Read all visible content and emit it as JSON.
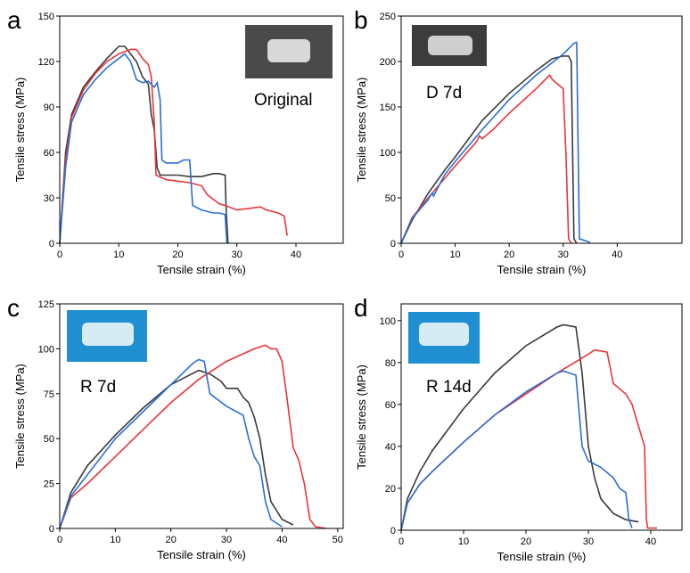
{
  "chart_data": [
    {
      "type": "line",
      "label": "a",
      "annotation": "Original",
      "xlabel": "Tensile strain (%)",
      "ylabel": "Tensile stress (MPa)",
      "xlim": [
        0,
        48
      ],
      "ylim": [
        0,
        150
      ],
      "xticks": [
        0,
        10,
        20,
        30,
        40
      ],
      "yticks": [
        0,
        30,
        60,
        90,
        120,
        150
      ],
      "grid": false,
      "series": [
        {
          "color": "#3a3a3a",
          "x": [
            0,
            1,
            2,
            4,
            6,
            8,
            10,
            11,
            12,
            13,
            14,
            15,
            15.5,
            16,
            16.5,
            17,
            20,
            22,
            24,
            26,
            27,
            28,
            28.2,
            28.5
          ],
          "values": [
            0,
            60,
            85,
            103,
            113,
            122,
            130,
            130,
            125,
            120,
            110,
            105,
            85,
            75,
            50,
            45,
            45,
            44,
            44,
            46,
            46,
            45,
            20,
            0
          ]
        },
        {
          "color": "#e8363a",
          "x": [
            0,
            1,
            2,
            4,
            6,
            8,
            10,
            12,
            13,
            14,
            15,
            15.5,
            16,
            16.3,
            18,
            20,
            22,
            24,
            25,
            27,
            28,
            30,
            32,
            34,
            35,
            37,
            38,
            38.5
          ],
          "values": [
            0,
            55,
            83,
            101,
            112,
            120,
            125,
            128,
            128,
            122,
            118,
            110,
            80,
            45,
            42,
            41,
            40,
            38,
            32,
            26,
            25,
            22,
            23,
            24,
            22,
            20,
            18,
            5
          ]
        },
        {
          "color": "#2a6fd6",
          "x": [
            0,
            1,
            2,
            4,
            6,
            8,
            10,
            11,
            12,
            13,
            14,
            15,
            16,
            16.5,
            17,
            17.3,
            18,
            20,
            21,
            22,
            22.5,
            24,
            26,
            27,
            28,
            28.3
          ],
          "values": [
            0,
            50,
            80,
            98,
            108,
            116,
            122,
            125,
            120,
            108,
            106,
            107,
            103,
            106,
            95,
            55,
            53,
            53,
            55,
            55,
            25,
            22,
            20,
            20,
            19,
            0
          ]
        }
      ]
    },
    {
      "type": "line",
      "label": "b",
      "annotation": "D 7d",
      "xlabel": "Tensile strain (%)",
      "ylabel": "Tensile stress (MPa)",
      "xlim": [
        0,
        52
      ],
      "ylim": [
        0,
        250
      ],
      "xticks": [
        0,
        10,
        20,
        30,
        40
      ],
      "yticks": [
        0,
        50,
        100,
        150,
        200,
        250
      ],
      "grid": false,
      "series": [
        {
          "color": "#3a3a3a",
          "x": [
            0,
            2,
            5,
            8,
            10,
            15,
            20,
            25,
            28,
            30,
            31,
            31.5,
            32,
            32.5
          ],
          "values": [
            0,
            25,
            55,
            80,
            95,
            135,
            165,
            190,
            203,
            206,
            206,
            200,
            5,
            0
          ]
        },
        {
          "color": "#e8363a",
          "x": [
            0,
            2,
            5,
            10,
            14,
            14.5,
            15,
            17,
            20,
            25,
            27.5,
            28,
            29,
            30,
            30.5,
            31,
            31.5
          ],
          "values": [
            0,
            28,
            50,
            85,
            112,
            118,
            115,
            125,
            143,
            170,
            185,
            180,
            175,
            170,
            100,
            5,
            0
          ]
        },
        {
          "color": "#2a6fd6",
          "x": [
            0,
            2,
            5,
            5.5,
            5.8,
            6,
            8,
            10,
            15,
            20,
            25,
            30,
            32,
            32.5,
            33,
            35
          ],
          "values": [
            0,
            27,
            48,
            53,
            55,
            52,
            75,
            90,
            125,
            158,
            185,
            208,
            220,
            221,
            5,
            1
          ]
        }
      ]
    },
    {
      "type": "line",
      "label": "c",
      "annotation": "R 7d",
      "xlabel": "Tensile strain (%)",
      "ylabel": "Tensile stress (MPa)",
      "xlim": [
        0,
        51
      ],
      "ylim": [
        0,
        125
      ],
      "xticks": [
        0,
        10,
        20,
        30,
        40,
        50
      ],
      "yticks": [
        0,
        25,
        50,
        75,
        100,
        125
      ],
      "grid": false,
      "series": [
        {
          "color": "#3a3a3a",
          "x": [
            0,
            2,
            5,
            10,
            15,
            20,
            25,
            27,
            29,
            30,
            32,
            33,
            34,
            35,
            36,
            37,
            38,
            40,
            42
          ],
          "values": [
            0,
            20,
            35,
            52,
            67,
            80,
            88,
            86,
            82,
            78,
            78,
            73,
            70,
            62,
            50,
            30,
            15,
            5,
            2
          ]
        },
        {
          "color": "#e8363a",
          "x": [
            0,
            2,
            5,
            10,
            15,
            20,
            25,
            30,
            35,
            37,
            38,
            39,
            40,
            41,
            42,
            43,
            44,
            45,
            46,
            48
          ],
          "values": [
            0,
            17,
            25,
            40,
            55,
            70,
            83,
            93,
            100,
            102,
            100,
            100,
            93,
            70,
            45,
            38,
            25,
            5,
            1,
            0
          ]
        },
        {
          "color": "#2a6fd6",
          "x": [
            0,
            2,
            5,
            10,
            15,
            20,
            24,
            25,
            26,
            27,
            30,
            33,
            34,
            35,
            36,
            37,
            38,
            40
          ],
          "values": [
            0,
            18,
            30,
            50,
            65,
            80,
            92,
            94,
            93,
            75,
            68,
            63,
            50,
            40,
            35,
            15,
            5,
            1
          ]
        }
      ]
    },
    {
      "type": "line",
      "label": "d",
      "annotation": "R 14d",
      "xlabel": "Tensile strain (%)",
      "ylabel": "Tensile stress (MPa)",
      "xlim": [
        0,
        45
      ],
      "ylim": [
        0,
        108
      ],
      "xticks": [
        0,
        10,
        20,
        30,
        40
      ],
      "yticks": [
        0,
        20,
        40,
        60,
        80,
        100
      ],
      "grid": false,
      "series": [
        {
          "color": "#3a3a3a",
          "x": [
            0,
            1,
            3,
            5,
            10,
            15,
            20,
            25,
            26,
            28,
            29,
            30,
            31,
            32,
            34,
            36,
            38
          ],
          "values": [
            0,
            15,
            28,
            38,
            58,
            75,
            88,
            97,
            98,
            97,
            75,
            40,
            25,
            15,
            8,
            5,
            4
          ]
        },
        {
          "color": "#e8363a",
          "x": [
            0,
            1,
            3,
            5,
            10,
            15,
            20,
            25,
            30,
            31,
            33,
            34,
            36,
            37,
            38,
            39,
            39.3,
            39.5,
            41
          ],
          "values": [
            0,
            13,
            22,
            28,
            42,
            55,
            65,
            75,
            84,
            86,
            85,
            70,
            65,
            60,
            50,
            40,
            5,
            1,
            1
          ]
        },
        {
          "color": "#2a6fd6",
          "x": [
            0,
            1,
            3,
            5,
            10,
            15,
            20,
            25,
            26,
            28,
            29,
            30,
            32,
            34,
            35,
            36,
            36.5,
            37
          ],
          "values": [
            0,
            13,
            22,
            28,
            42,
            55,
            66,
            75,
            76,
            74,
            40,
            33,
            30,
            25,
            20,
            18,
            5,
            1
          ]
        }
      ]
    }
  ]
}
